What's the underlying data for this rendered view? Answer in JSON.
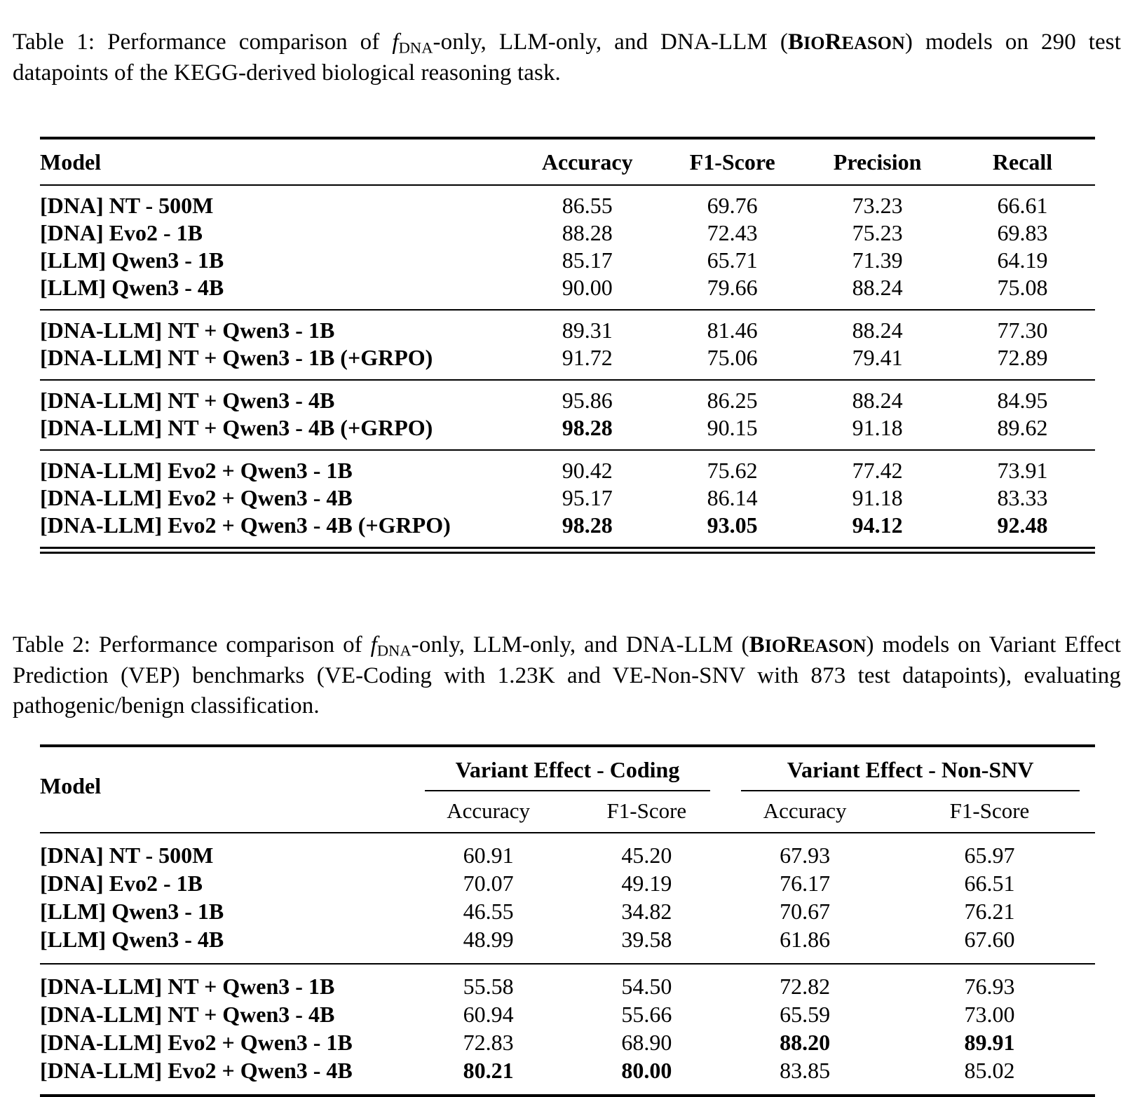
{
  "accent_color": "#000000",
  "background_color": "#ffffff",
  "caption1": {
    "label": "Table 1:",
    "seg1": "Performance comparison of ",
    "f": "f",
    "f_sub": "DNA",
    "seg2": "-only, LLM-only, and DNA-LLM (",
    "bio_b1": "B",
    "bio_s1": "IO",
    "bio_b2": "R",
    "bio_s2": "EASON",
    "seg3": ") models on 290 test datapoints of the KEGG-derived biological reasoning task."
  },
  "caption2": {
    "label": "Table 2:",
    "seg1": "Performance comparison of ",
    "f": "f",
    "f_sub": "DNA",
    "seg2": "-only, LLM-only, and DNA-LLM (",
    "bio_b1": "B",
    "bio_s1": "IO",
    "bio_b2": "R",
    "bio_s2": "EASON",
    "seg3": ") models on Variant Effect Prediction (VEP) benchmarks (VE-Coding with 1.23K and VE-Non-SNV with 873 test datapoints), evaluating pathogenic/benign classification."
  },
  "table1": {
    "columns": [
      "Model",
      "Accuracy",
      "F1-Score",
      "Precision",
      "Recall"
    ],
    "groups": [
      [
        {
          "m": "[DNA] NT - 500M",
          "c": [
            {
              "v": "86.55"
            },
            {
              "v": "69.76"
            },
            {
              "v": "73.23"
            },
            {
              "v": "66.61"
            }
          ]
        },
        {
          "m": "[DNA] Evo2 - 1B",
          "c": [
            {
              "v": "88.28"
            },
            {
              "v": "72.43"
            },
            {
              "v": "75.23"
            },
            {
              "v": "69.83"
            }
          ]
        },
        {
          "m": "[LLM] Qwen3 - 1B",
          "c": [
            {
              "v": "85.17"
            },
            {
              "v": "65.71"
            },
            {
              "v": "71.39"
            },
            {
              "v": "64.19"
            }
          ]
        },
        {
          "m": "[LLM] Qwen3 - 4B",
          "c": [
            {
              "v": "90.00"
            },
            {
              "v": "79.66"
            },
            {
              "v": "88.24"
            },
            {
              "v": "75.08"
            }
          ]
        }
      ],
      [
        {
          "m": "[DNA-LLM] NT + Qwen3 - 1B",
          "c": [
            {
              "v": "89.31"
            },
            {
              "v": "81.46"
            },
            {
              "v": "88.24"
            },
            {
              "v": "77.30"
            }
          ]
        },
        {
          "m": "[DNA-LLM] NT + Qwen3 - 1B (+GRPO)",
          "c": [
            {
              "v": "91.72"
            },
            {
              "v": "75.06"
            },
            {
              "v": "79.41"
            },
            {
              "v": "72.89"
            }
          ]
        }
      ],
      [
        {
          "m": "[DNA-LLM] NT + Qwen3 - 4B",
          "c": [
            {
              "v": "95.86"
            },
            {
              "v": "86.25"
            },
            {
              "v": "88.24"
            },
            {
              "v": "84.95"
            }
          ]
        },
        {
          "m": "[DNA-LLM] NT + Qwen3 - 4B (+GRPO)",
          "c": [
            {
              "v": "98.28",
              "b": true
            },
            {
              "v": "90.15"
            },
            {
              "v": "91.18"
            },
            {
              "v": "89.62"
            }
          ]
        }
      ],
      [
        {
          "m": "[DNA-LLM] Evo2 + Qwen3 - 1B",
          "c": [
            {
              "v": "90.42"
            },
            {
              "v": "75.62"
            },
            {
              "v": "77.42"
            },
            {
              "v": "73.91"
            }
          ]
        },
        {
          "m": "[DNA-LLM] Evo2 + Qwen3 - 4B",
          "c": [
            {
              "v": "95.17"
            },
            {
              "v": "86.14"
            },
            {
              "v": "91.18"
            },
            {
              "v": "83.33"
            }
          ]
        },
        {
          "m": "[DNA-LLM] Evo2 + Qwen3 - 4B (+GRPO)",
          "c": [
            {
              "v": "98.28",
              "b": true
            },
            {
              "v": "93.05",
              "b": true
            },
            {
              "v": "94.12",
              "b": true
            },
            {
              "v": "92.48",
              "b": true
            }
          ]
        }
      ]
    ]
  },
  "table2": {
    "col_model": "Model",
    "span_headers": [
      "Variant Effect - Coding",
      "Variant Effect - Non-SNV"
    ],
    "sub_headers": [
      "Accuracy",
      "F1-Score",
      "Accuracy",
      "F1-Score"
    ],
    "groups": [
      [
        {
          "m": "[DNA] NT - 500M",
          "c": [
            {
              "v": "60.91"
            },
            {
              "v": "45.20"
            },
            {
              "v": "67.93"
            },
            {
              "v": "65.97"
            }
          ]
        },
        {
          "m": "[DNA] Evo2 - 1B",
          "c": [
            {
              "v": "70.07"
            },
            {
              "v": "49.19"
            },
            {
              "v": "76.17"
            },
            {
              "v": "66.51"
            }
          ]
        },
        {
          "m": "[LLM] Qwen3 - 1B",
          "c": [
            {
              "v": "46.55"
            },
            {
              "v": "34.82"
            },
            {
              "v": "70.67"
            },
            {
              "v": "76.21"
            }
          ]
        },
        {
          "m": "[LLM] Qwen3 - 4B",
          "c": [
            {
              "v": "48.99"
            },
            {
              "v": "39.58"
            },
            {
              "v": "61.86"
            },
            {
              "v": "67.60"
            }
          ]
        }
      ],
      [
        {
          "m": "[DNA-LLM] NT + Qwen3 - 1B",
          "c": [
            {
              "v": "55.58"
            },
            {
              "v": "54.50"
            },
            {
              "v": "72.82"
            },
            {
              "v": "76.93"
            }
          ]
        },
        {
          "m": "[DNA-LLM] NT + Qwen3 - 4B",
          "c": [
            {
              "v": "60.94"
            },
            {
              "v": "55.66"
            },
            {
              "v": "65.59"
            },
            {
              "v": "73.00"
            }
          ]
        },
        {
          "m": "[DNA-LLM] Evo2 + Qwen3 - 1B",
          "c": [
            {
              "v": "72.83"
            },
            {
              "v": "68.90"
            },
            {
              "v": "88.20",
              "b": true
            },
            {
              "v": "89.91",
              "b": true
            }
          ]
        },
        {
          "m": "[DNA-LLM] Evo2 + Qwen3 - 4B",
          "c": [
            {
              "v": "80.21",
              "b": true
            },
            {
              "v": "80.00",
              "b": true
            },
            {
              "v": "83.85"
            },
            {
              "v": "85.02"
            }
          ]
        }
      ]
    ]
  }
}
